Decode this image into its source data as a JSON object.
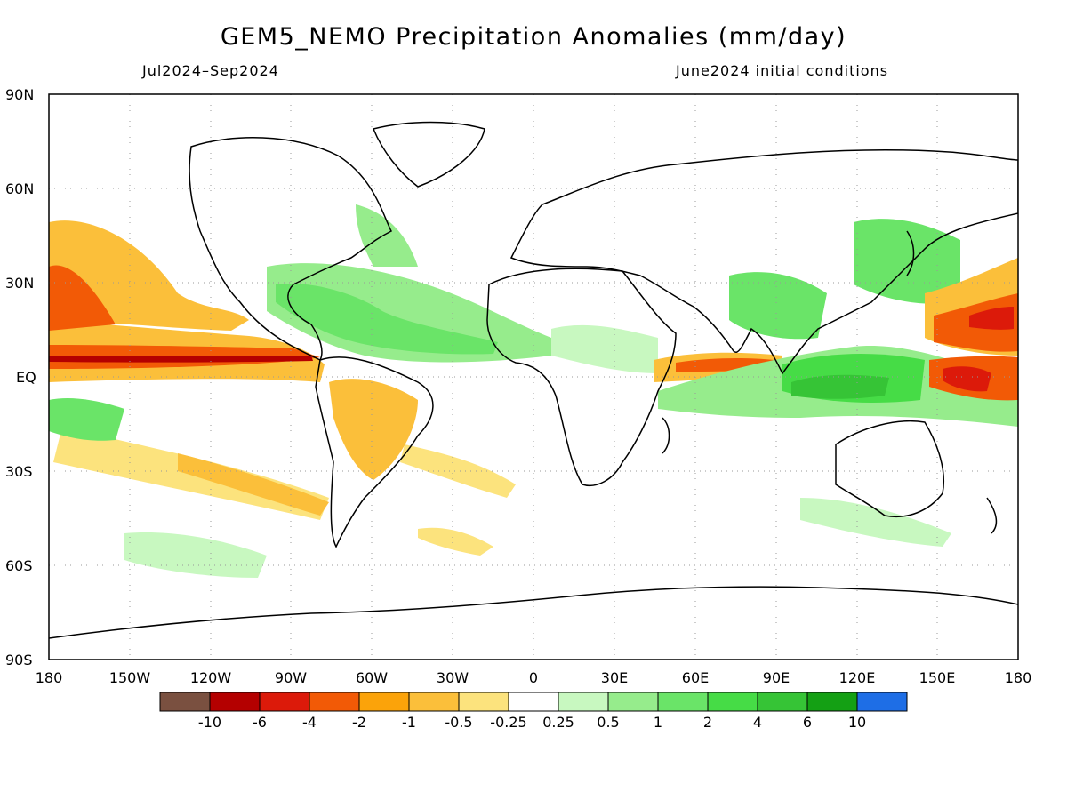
{
  "title": "GEM5_NEMO Precipitation Anomalies (mm/day)",
  "period": "Jul2024–Sep2024",
  "initial_conditions": "June2024 initial conditions",
  "lat_labels": [
    "90N",
    "60N",
    "30N",
    "EQ",
    "30S",
    "60S",
    "90S"
  ],
  "lon_labels": [
    "180",
    "150W",
    "120W",
    "90W",
    "60W",
    "30W",
    "0",
    "30E",
    "60E",
    "90E",
    "120E",
    "150E",
    "180"
  ],
  "colorbar": {
    "colors": [
      "#7a5040",
      "#b40000",
      "#dc1a0a",
      "#f25a06",
      "#fba30a",
      "#fbbf3a",
      "#fce37d",
      "#ffffff",
      "#c8f8c0",
      "#96ec8c",
      "#6ae468",
      "#46dc46",
      "#36c436",
      "#14a014",
      "#1e6ee6"
    ],
    "tick_labels": [
      "-10",
      "-6",
      "-4",
      "-2",
      "-1",
      "-0.5",
      "-0.25",
      "0.25",
      "0.5",
      "1",
      "2",
      "4",
      "6",
      "10"
    ]
  },
  "anomaly_fields": [
    {
      "name": "pacific-itcz-deficit",
      "level": "-4",
      "color": "#f25a06"
    },
    {
      "name": "pacific-itcz-core",
      "level": "-6",
      "color": "#dc1a0a"
    },
    {
      "name": "northeast-pacific-deficit",
      "level": "-1",
      "color": "#fbbf3a"
    },
    {
      "name": "caribbean-surplus",
      "level": "2",
      "color": "#6ae468"
    },
    {
      "name": "atlantic-surplus",
      "level": "1",
      "color": "#96ec8c"
    },
    {
      "name": "indian-ocean-deficit",
      "level": "-2",
      "color": "#f25a06"
    },
    {
      "name": "maritime-continent-surplus",
      "level": "4",
      "color": "#46dc46"
    },
    {
      "name": "west-pacific-deficit",
      "level": "-4",
      "color": "#f25a06"
    },
    {
      "name": "south-america-deficit",
      "level": "-0.5",
      "color": "#fbbf3a"
    },
    {
      "name": "south-pacific-deficit",
      "level": "-0.5",
      "color": "#fbbf3a"
    }
  ]
}
